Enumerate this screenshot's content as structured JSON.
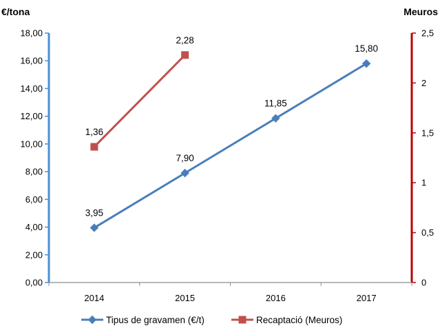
{
  "chart_data": {
    "type": "line",
    "categories": [
      "2014",
      "2015",
      "2016",
      "2017"
    ],
    "y_left": {
      "label": "€/tona",
      "range": [
        0,
        18
      ],
      "ticks": [
        "0,00",
        "2,00",
        "4,00",
        "6,00",
        "8,00",
        "10,00",
        "12,00",
        "14,00",
        "16,00",
        "18,00"
      ],
      "color": "#4a8fd4"
    },
    "y_right": {
      "label": "Meuros",
      "range": [
        0,
        2.5
      ],
      "ticks": [
        "0",
        "0,5",
        "1",
        "1,5",
        "2",
        "2,5"
      ],
      "color": "#c00000"
    },
    "series": [
      {
        "name": "Tipus de gravamen (€/t)",
        "axis": "left",
        "color": "#4a7ebb",
        "marker": "diamond",
        "values": [
          3.95,
          7.9,
          11.85,
          15.8
        ],
        "labels": [
          "3,95",
          "7,90",
          "11,85",
          "15,80"
        ]
      },
      {
        "name": "Recaptació (Meuros)",
        "axis": "right",
        "color": "#c0504d",
        "marker": "square",
        "values": [
          1.36,
          2.28,
          null,
          null
        ],
        "labels": [
          "1,36",
          "2,28",
          null,
          null
        ]
      }
    ],
    "legend_position": "bottom",
    "grid": false
  }
}
